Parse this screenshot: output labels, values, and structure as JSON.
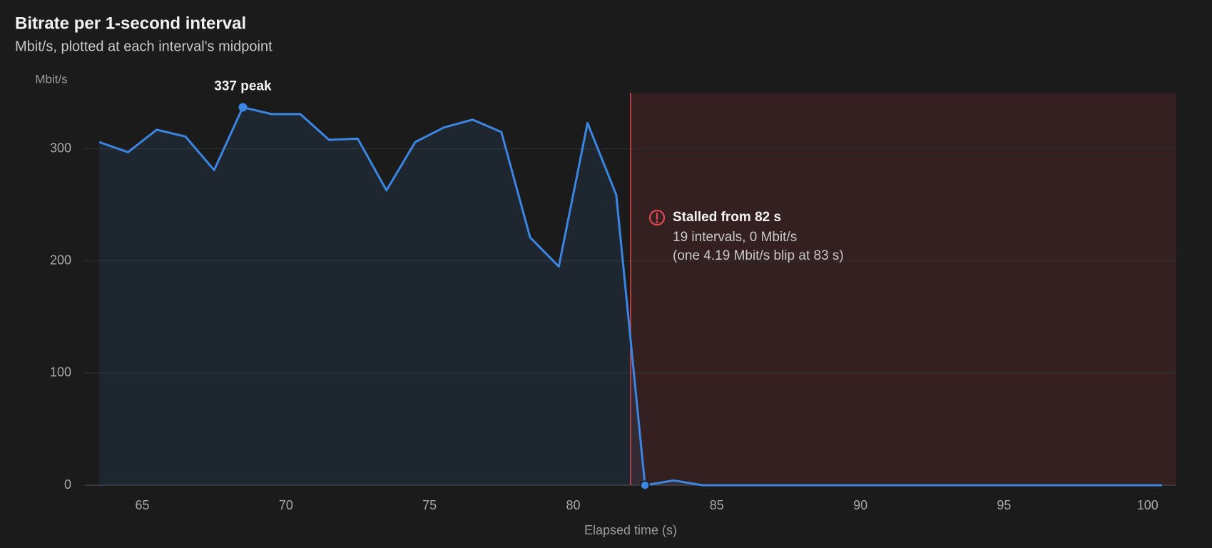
{
  "chart_data": {
    "type": "line",
    "title": "Bitrate per 1-second interval",
    "subtitle": "Mbit/s, plotted at each interval's midpoint",
    "y_label": "Mbit/s",
    "x_label": "Elapsed time (s)",
    "x": [
      63.5,
      64.5,
      65.5,
      66.5,
      67.5,
      68.5,
      69.5,
      70.5,
      71.5,
      72.5,
      73.5,
      74.5,
      75.5,
      76.5,
      77.5,
      78.5,
      79.5,
      80.5,
      81.5,
      82.5,
      83.5,
      84.5,
      85.5,
      86.5,
      87.5,
      88.5,
      89.5,
      90.5,
      91.5,
      92.5,
      93.5,
      94.5,
      95.5,
      96.5,
      97.5,
      98.5,
      99.5,
      100.5
    ],
    "series": [
      {
        "name": "Bitrate",
        "color": "#3b86e2",
        "values": [
          306,
          297,
          317,
          311,
          281,
          337,
          331,
          331,
          308,
          309,
          263,
          306,
          319,
          326,
          315,
          221,
          195,
          323,
          259,
          0,
          4.19,
          0,
          0,
          0,
          0,
          0,
          0,
          0,
          0,
          0,
          0,
          0,
          0,
          0,
          0,
          0,
          0,
          0
        ]
      }
    ],
    "peak_index": 5,
    "peak_label": "337 peak",
    "stall_index": 19,
    "stall_start": 82,
    "stall_color": "#e0474c",
    "stall_title": "Stalled from 82 s",
    "stall_lines": [
      "19 intervals, 0 Mbit/s",
      "(one 4.19 Mbit/s blip at 83 s)"
    ],
    "xlim": [
      63,
      101
    ],
    "ylim": [
      0,
      350
    ],
    "xticks": [
      65,
      70,
      75,
      80,
      85,
      90,
      95,
      100
    ],
    "yticks": [
      0,
      100,
      200,
      300
    ],
    "grid": true
  }
}
